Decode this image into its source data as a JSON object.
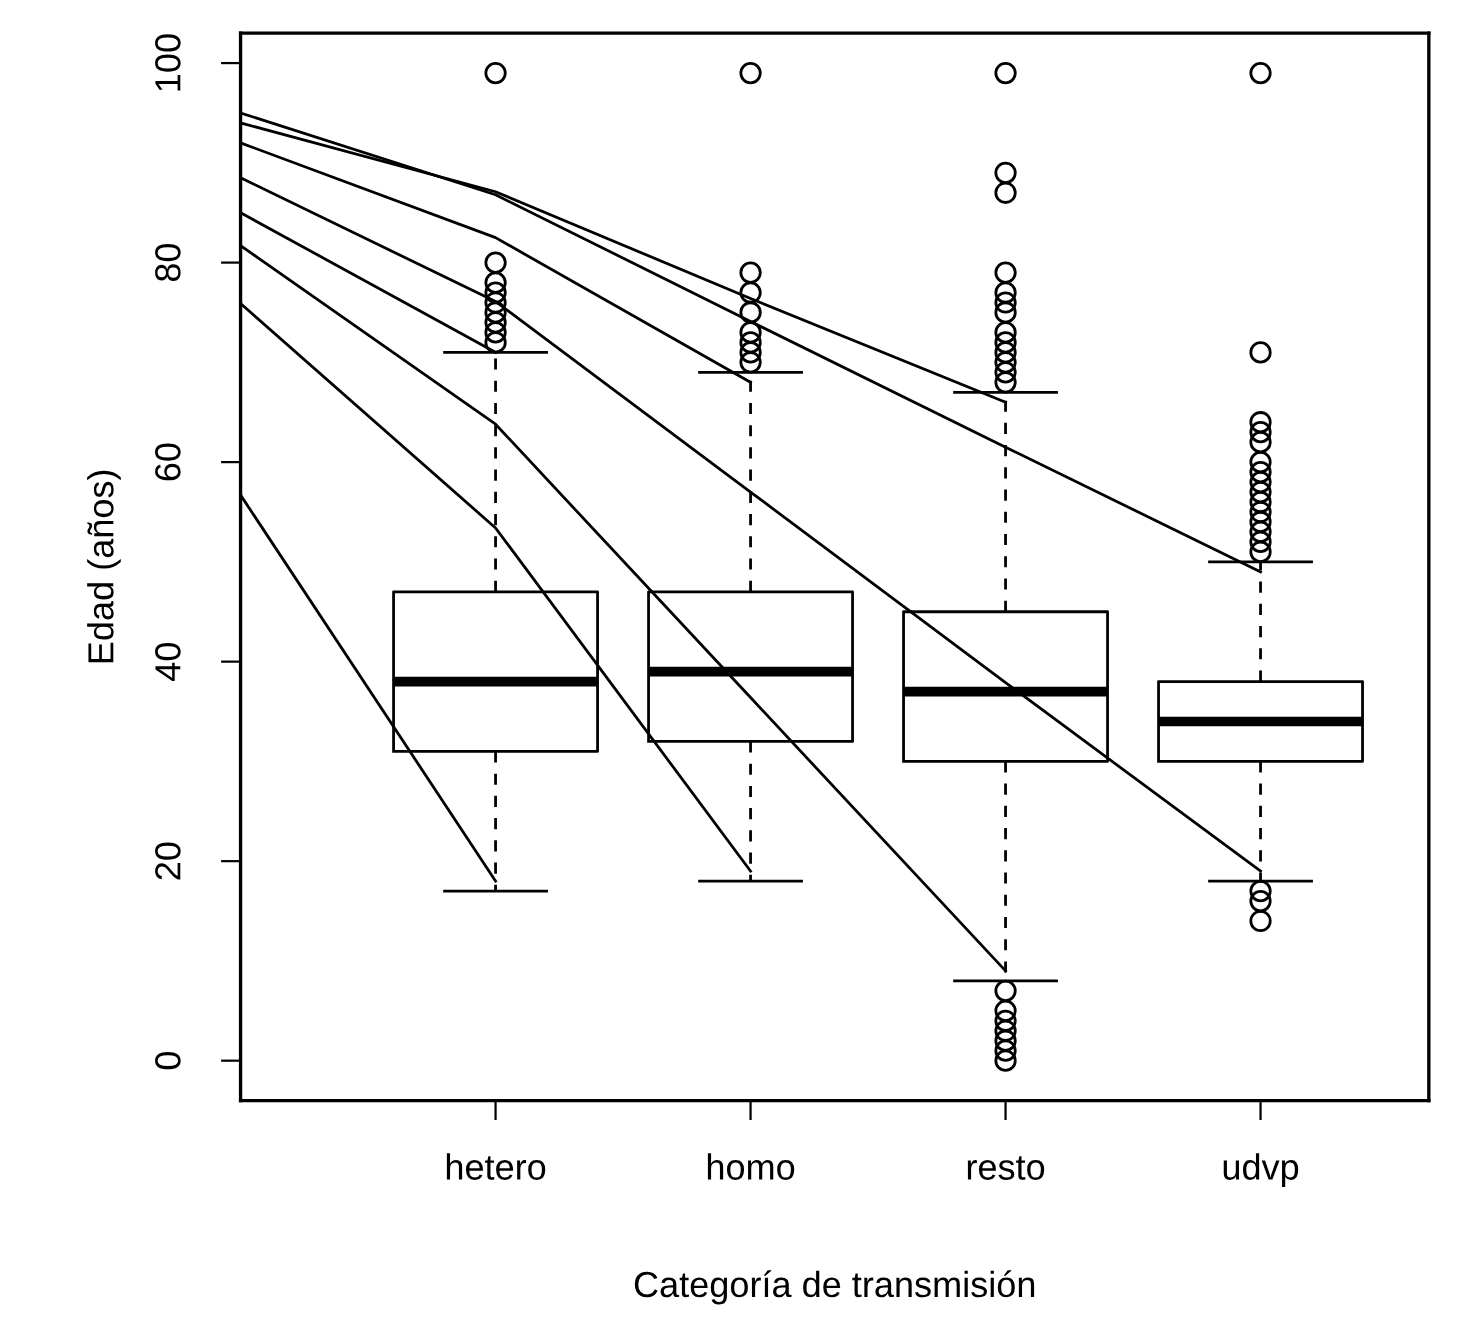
{
  "chart_data": {
    "type": "box",
    "xlabel": "Categoría de transmisión",
    "ylabel": "Edad (años)",
    "categories": [
      null,
      "hetero",
      "homo",
      "resto",
      "udvp"
    ],
    "boxes": [
      null,
      {
        "low": 17,
        "q1": 31,
        "median": 38,
        "q3": 47,
        "high": 71,
        "outliers": [
          72,
          73,
          74,
          75,
          76,
          77,
          78,
          80,
          99
        ]
      },
      {
        "low": 18,
        "q1": 32,
        "median": 39,
        "q3": 47,
        "high": 69,
        "outliers": [
          70,
          71,
          72,
          73,
          75,
          77,
          79,
          99
        ]
      },
      {
        "low": 8,
        "q1": 30,
        "median": 37,
        "q3": 45,
        "high": 67,
        "outliers": [
          0,
          1,
          2,
          3,
          4,
          5,
          7,
          68,
          69,
          70,
          71,
          72,
          73,
          75,
          76,
          77,
          79,
          87,
          89,
          99
        ]
      },
      {
        "low": 18,
        "q1": 30,
        "median": 34,
        "q3": 38,
        "high": 50,
        "outliers": [
          14,
          16,
          17,
          51,
          52,
          53,
          54,
          55,
          56,
          57,
          58,
          59,
          60,
          62,
          63,
          64,
          71,
          99
        ]
      }
    ],
    "series": [
      {
        "type": "line",
        "marker": "none",
        "color": "#000000",
        "values": [
          95.0,
          86.8,
          74.1,
          61.5,
          49
        ]
      },
      {
        "type": "line",
        "marker": "none",
        "color": "#000000",
        "values": [
          94.0,
          87.1,
          76.4,
          66,
          null
        ]
      },
      {
        "type": "line",
        "marker": "none",
        "color": "#000000",
        "values": [
          92.0,
          82.5,
          68,
          null,
          null
        ]
      },
      {
        "type": "line",
        "marker": "none",
        "color": "#000000",
        "values": [
          88.5,
          76.1,
          57.0,
          37.9,
          19
        ]
      },
      {
        "type": "line",
        "marker": "none",
        "color": "#000000",
        "values": [
          85.0,
          71,
          null,
          null,
          null
        ]
      },
      {
        "type": "line",
        "marker": "none",
        "color": "#000000",
        "values": [
          81.7,
          63.8,
          36.4,
          9,
          null
        ]
      },
      {
        "type": "line",
        "marker": "none",
        "color": "#000000",
        "values": [
          75.9,
          53.4,
          19,
          null,
          null
        ]
      },
      {
        "type": "line",
        "marker": "none",
        "color": "#000000",
        "values": [
          56.7,
          18,
          null,
          null,
          null
        ]
      }
    ],
    "ylim": [
      -4,
      103
    ],
    "yticks": [
      0,
      20,
      40,
      60,
      80,
      100
    ],
    "marker": "circle",
    "grid": false
  }
}
